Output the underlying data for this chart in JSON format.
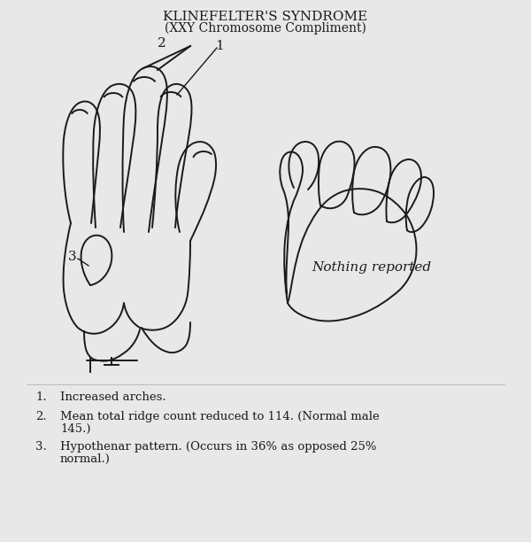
{
  "title_line1": "KLINEFELTER'S SYNDROME",
  "title_line2": "(XXY Chromosome Compliment)",
  "bg_color": "#e8e8e8",
  "line_color": "#1a1a1a",
  "text_color": "#1a1a1a",
  "nothing_reported": "Nothing reported",
  "notes": [
    "1.    Increased arches.",
    "2.    Mean total ridge count reduced to 114. (Normal male\n        145.)",
    "3.    Hypothenar pattern. (Occurs in 36% as opposed 25%\n        normal.)"
  ],
  "label1": "1",
  "label2": "2",
  "label3": "3"
}
